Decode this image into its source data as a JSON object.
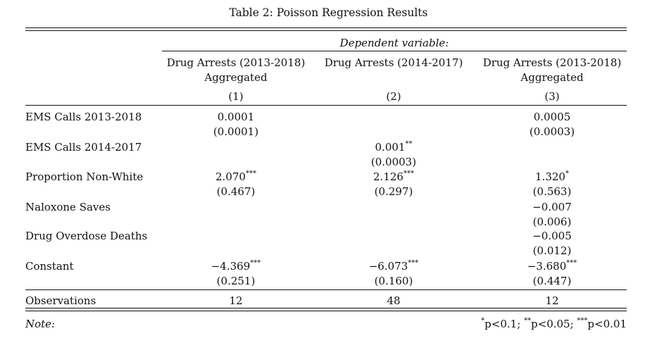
{
  "caption": "Table 2: Poisson Regression Results",
  "dependent_variable_label": "Dependent variable:",
  "columns": [
    {
      "line1": "Drug Arrests (2013-2018)",
      "line2": "Aggregated",
      "number": "(1)"
    },
    {
      "line1": "Drug Arrests (2014-2017)",
      "line2": "",
      "number": "(2)"
    },
    {
      "line1": "Drug Arrests (2013-2018)",
      "line2": "Aggregated",
      "number": "(3)"
    }
  ],
  "rows": [
    {
      "label": "EMS Calls 2013-2018",
      "cells": [
        {
          "coef": "0.0001",
          "stars": "",
          "se": "(0.0001)"
        },
        {
          "coef": "",
          "stars": "",
          "se": ""
        },
        {
          "coef": "0.0005",
          "stars": "",
          "se": "(0.0003)"
        }
      ]
    },
    {
      "label": "EMS Calls 2014-2017",
      "cells": [
        {
          "coef": "",
          "stars": "",
          "se": ""
        },
        {
          "coef": "0.001",
          "stars": "**",
          "se": "(0.0003)"
        },
        {
          "coef": "",
          "stars": "",
          "se": ""
        }
      ]
    },
    {
      "label": "Proportion Non-White",
      "cells": [
        {
          "coef": "2.070",
          "stars": "***",
          "se": "(0.467)"
        },
        {
          "coef": "2.126",
          "stars": "***",
          "se": "(0.297)"
        },
        {
          "coef": "1.320",
          "stars": "*",
          "se": "(0.563)"
        }
      ]
    },
    {
      "label": "Naloxone Saves",
      "cells": [
        {
          "coef": "",
          "stars": "",
          "se": ""
        },
        {
          "coef": "",
          "stars": "",
          "se": ""
        },
        {
          "coef": "−0.007",
          "stars": "",
          "se": "(0.006)"
        }
      ]
    },
    {
      "label": "Drug Overdose Deaths",
      "cells": [
        {
          "coef": "",
          "stars": "",
          "se": ""
        },
        {
          "coef": "",
          "stars": "",
          "se": ""
        },
        {
          "coef": "−0.005",
          "stars": "",
          "se": "(0.012)"
        }
      ]
    },
    {
      "label": "Constant",
      "cells": [
        {
          "coef": "−4.369",
          "stars": "***",
          "se": "(0.251)"
        },
        {
          "coef": "−6.073",
          "stars": "***",
          "se": "(0.160)"
        },
        {
          "coef": "−3.680",
          "stars": "***",
          "se": "(0.447)"
        }
      ]
    }
  ],
  "observations": {
    "label": "Observations",
    "values": [
      "12",
      "48",
      "12"
    ]
  },
  "note": {
    "label": "Note:",
    "sig": [
      {
        "stars": "*",
        "text": "p<0.1; "
      },
      {
        "stars": "**",
        "text": "p<0.05; "
      },
      {
        "stars": "***",
        "text": "p<0.01"
      }
    ]
  }
}
